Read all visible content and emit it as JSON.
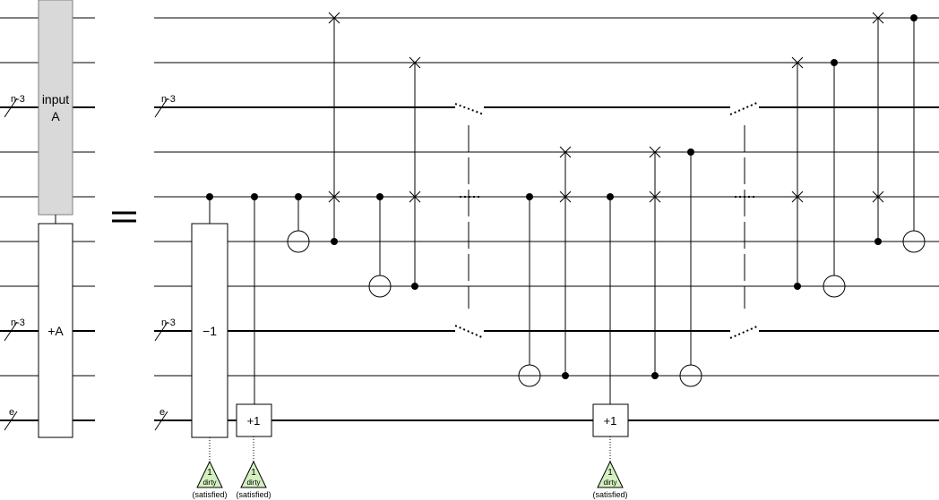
{
  "labels": {
    "input_gate": [
      "input",
      "A"
    ],
    "add_gate": "+A",
    "decrement_gate": "−1",
    "increment_gate_1": "+1",
    "increment_gate_2": "+1",
    "bus_n3": "n-3",
    "bus_e": "e",
    "dirty_count": "1",
    "dirty_word": "dirty",
    "dirty_status": "(satisfied)"
  },
  "colors": {
    "input_gate_fill": "#d9d9d9",
    "dirty_indicator_fill": "#d4f0c0",
    "wire": "#000000"
  }
}
